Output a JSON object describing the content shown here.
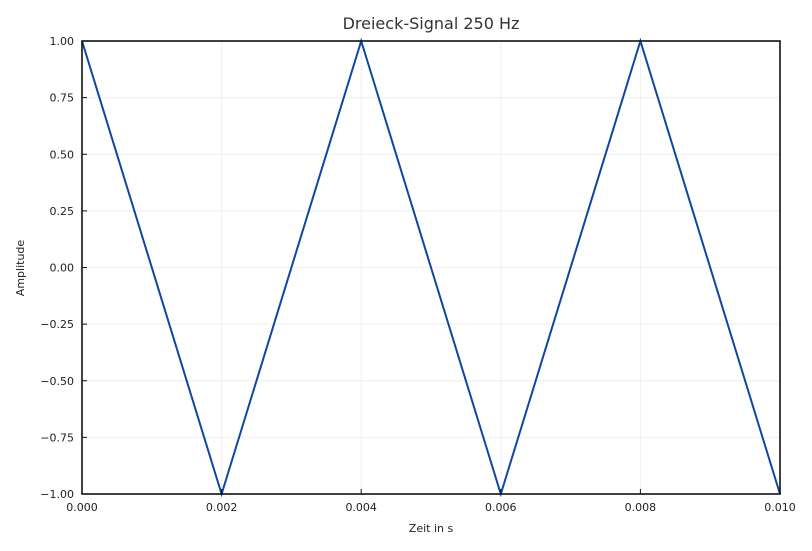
{
  "chart_data": {
    "type": "line",
    "title": "Dreieck-Signal 250 Hz",
    "xlabel": "Zeit in s",
    "ylabel": "Amplitude",
    "xlim": [
      0,
      0.01
    ],
    "ylim": [
      -1,
      1
    ],
    "grid": true,
    "x_ticks": [
      "0.000",
      "0.002",
      "0.004",
      "0.006",
      "0.008",
      "0.010"
    ],
    "y_ticks": [
      "1.00",
      "0.75",
      "0.50",
      "0.25",
      "0.00",
      "−0.25",
      "−0.50",
      "−0.75",
      "−1.00"
    ],
    "series": [
      {
        "color": "#0d47a1",
        "x": [
          0,
          0.002,
          0.004,
          0.006,
          0.008,
          0.01
        ],
        "y": [
          1,
          -1,
          1,
          -1,
          1,
          -1
        ]
      }
    ]
  }
}
